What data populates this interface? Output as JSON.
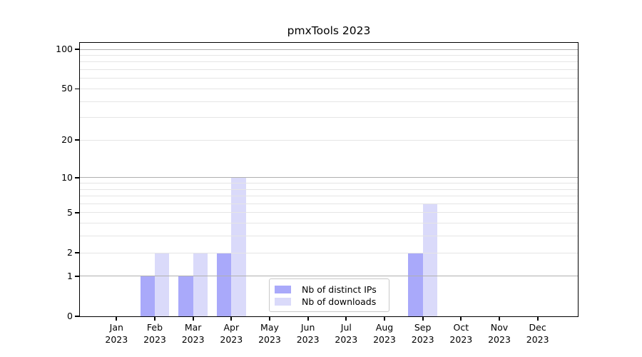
{
  "chart_data": {
    "type": "bar",
    "title": "pmxTools 2023",
    "categories": [
      "Jan 2023",
      "Feb 2023",
      "Mar 2023",
      "Apr 2023",
      "May 2023",
      "Jun 2023",
      "Jul 2023",
      "Aug 2023",
      "Sep 2023",
      "Oct 2023",
      "Nov 2023",
      "Dec 2023"
    ],
    "series": [
      {
        "name": "Nb of distinct IPs",
        "color": "#a9a9fa",
        "values": [
          0,
          1,
          1,
          2,
          0,
          0,
          0,
          0,
          2,
          0,
          0,
          0
        ]
      },
      {
        "name": "Nb of downloads",
        "color": "#dadafa",
        "values": [
          0,
          2,
          2,
          10,
          0,
          0,
          0,
          0,
          6,
          0,
          0,
          0
        ]
      }
    ],
    "yticks": [
      0,
      1,
      2,
      5,
      10,
      20,
      50,
      100
    ],
    "y_scale": "log1p",
    "ylim": [
      0,
      112
    ],
    "xlabel": "",
    "ylabel": "",
    "grid": {
      "major": [
        1,
        10,
        100
      ],
      "minor": [
        2,
        3,
        4,
        5,
        6,
        7,
        8,
        9,
        20,
        30,
        40,
        50,
        60,
        70,
        80,
        90
      ],
      "major_color": "#b0b0b0",
      "minor_color": "#e5e5e5",
      "grid_above_bars": true
    },
    "legend": {
      "location": "lower center inside plot",
      "entries": [
        "Nb of distinct IPs",
        "Nb of downloads"
      ]
    }
  }
}
